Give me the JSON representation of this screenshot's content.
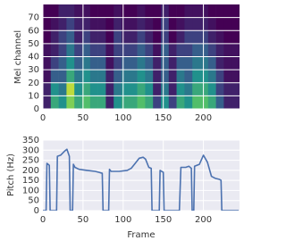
{
  "chart_data": [
    {
      "type": "heatmap",
      "ylabel": "Mel channel",
      "xlim": [
        0,
        245
      ],
      "xticks": [
        0,
        50,
        100,
        150,
        200
      ],
      "ylim": [
        0,
        80
      ],
      "yticks": [
        0,
        10,
        20,
        30,
        40,
        50,
        60,
        70
      ],
      "grid": true,
      "values": [
        [
          0.1,
          0.6,
          0.5,
          0.8,
          0.6,
          0.7,
          0.6,
          0.6,
          0.1,
          0.5,
          0.6,
          0.6,
          0.7,
          0.6,
          0.2,
          0.5,
          0.2,
          0.6,
          0.5,
          0.7,
          0.7,
          0.6,
          0.3,
          0.1,
          0.1
        ],
        [
          0.1,
          0.5,
          0.4,
          0.9,
          0.5,
          0.6,
          0.5,
          0.5,
          0.1,
          0.4,
          0.5,
          0.5,
          0.6,
          0.5,
          0.1,
          0.4,
          0.1,
          0.5,
          0.4,
          0.6,
          0.6,
          0.5,
          0.2,
          0.1,
          0.1
        ],
        [
          0.05,
          0.3,
          0.3,
          0.6,
          0.4,
          0.5,
          0.4,
          0.4,
          0.1,
          0.3,
          0.4,
          0.4,
          0.5,
          0.4,
          0.1,
          0.3,
          0.1,
          0.4,
          0.3,
          0.5,
          0.5,
          0.4,
          0.2,
          0.05,
          0.05
        ],
        [
          0.05,
          0.2,
          0.3,
          0.5,
          0.3,
          0.4,
          0.3,
          0.3,
          0.05,
          0.2,
          0.3,
          0.3,
          0.4,
          0.3,
          0.1,
          0.3,
          0.1,
          0.3,
          0.3,
          0.4,
          0.4,
          0.3,
          0.1,
          0.05,
          0.05
        ],
        [
          0.05,
          0.1,
          0.2,
          0.4,
          0.2,
          0.3,
          0.2,
          0.2,
          0.05,
          0.2,
          0.2,
          0.2,
          0.3,
          0.2,
          0.05,
          0.3,
          0.1,
          0.2,
          0.2,
          0.3,
          0.3,
          0.2,
          0.1,
          0.05,
          0.05
        ],
        [
          0,
          0.1,
          0.2,
          0.3,
          0.1,
          0.2,
          0.1,
          0.1,
          0,
          0.2,
          0.1,
          0.1,
          0.2,
          0.1,
          0,
          0.2,
          0,
          0.1,
          0.2,
          0.2,
          0.2,
          0.1,
          0.05,
          0,
          0
        ],
        [
          0,
          0.05,
          0.1,
          0.2,
          0.1,
          0.1,
          0.05,
          0.05,
          0,
          0.1,
          0.05,
          0.05,
          0.1,
          0.05,
          0,
          0.2,
          0,
          0.05,
          0.1,
          0.1,
          0.1,
          0.05,
          0,
          0,
          0
        ],
        [
          0,
          0,
          0.1,
          0.1,
          0.05,
          0.05,
          0,
          0,
          0,
          0.05,
          0,
          0,
          0.05,
          0,
          0,
          0.1,
          0,
          0,
          0.05,
          0.05,
          0.05,
          0,
          0,
          0,
          0
        ]
      ]
    },
    {
      "type": "line",
      "xlabel": "Frame",
      "ylabel": "Pitch (Hz)",
      "xlim": [
        0,
        245
      ],
      "xticks": [
        0,
        50,
        100,
        150,
        200
      ],
      "ylim": [
        0,
        350
      ],
      "yticks": [
        0,
        50,
        100,
        150,
        200,
        250,
        300,
        350
      ],
      "grid": true,
      "x": [
        0,
        4,
        5,
        8,
        9,
        17,
        18,
        22,
        27,
        30,
        33,
        34,
        37,
        38,
        40,
        45,
        55,
        65,
        70,
        74,
        75,
        82,
        83,
        85,
        95,
        105,
        110,
        115,
        120,
        125,
        128,
        132,
        135,
        136,
        145,
        146,
        150,
        151,
        170,
        172,
        178,
        182,
        185,
        186,
        188,
        189,
        195,
        200,
        205,
        210,
        215,
        220,
        222,
        223,
        244
      ],
      "series": [
        {
          "color": "#4c72b0",
          "values": [
            0,
            0,
            235,
            225,
            0,
            0,
            270,
            275,
            295,
            305,
            270,
            0,
            0,
            230,
            215,
            205,
            200,
            195,
            190,
            185,
            0,
            0,
            205,
            195,
            195,
            200,
            210,
            235,
            260,
            265,
            255,
            215,
            210,
            0,
            0,
            200,
            190,
            0,
            0,
            215,
            215,
            220,
            210,
            0,
            0,
            220,
            230,
            275,
            240,
            170,
            160,
            155,
            150,
            0,
            0
          ]
        }
      ]
    }
  ]
}
